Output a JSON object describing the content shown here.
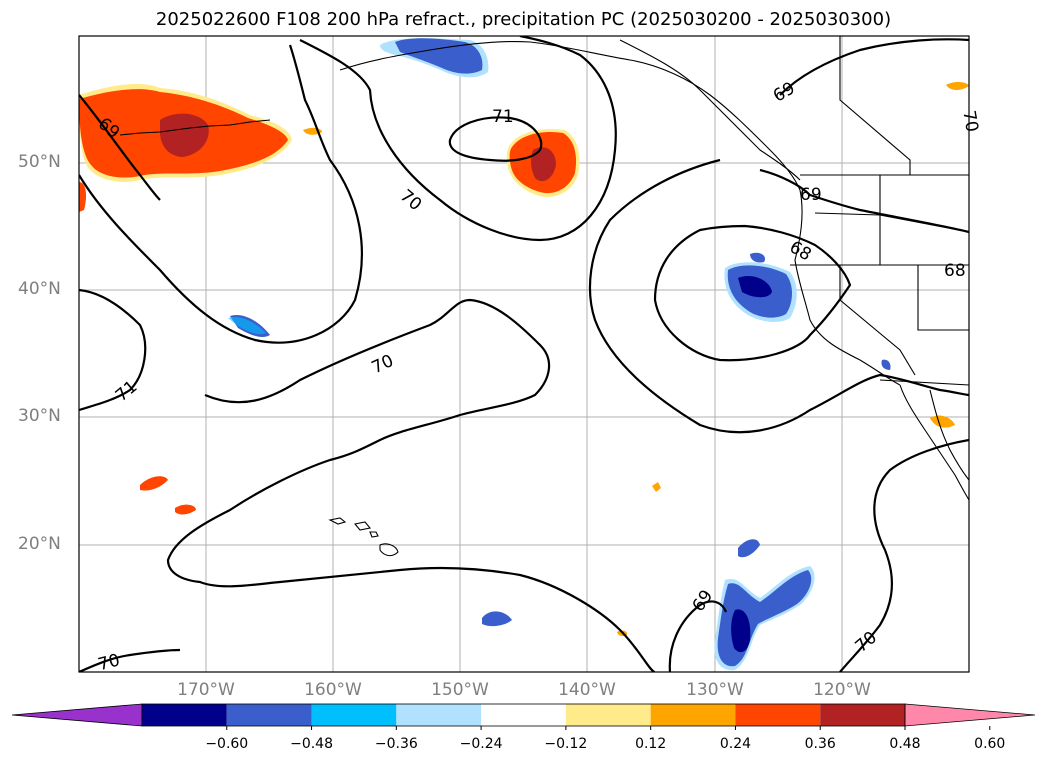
{
  "title": "2025022600 F108 200 hPa refract., precipitation PC (2025030200 - 2025030300)",
  "latitude_labels": [
    "50°N",
    "40°N",
    "30°N",
    "20°N"
  ],
  "longitude_labels": [
    "170°W",
    "160°W",
    "150°W",
    "140°W",
    "130°W",
    "120°W"
  ],
  "contour_labels": [
    "69",
    "71",
    "70",
    "70",
    "71",
    "70",
    "68",
    "69",
    "69",
    "68",
    "69",
    "70",
    "70"
  ],
  "colorbar": {
    "tick_labels": [
      "−0.60",
      "−0.48",
      "−0.36",
      "−0.24",
      "−0.12",
      "0.12",
      "0.24",
      "0.36",
      "0.48",
      "0.60"
    ],
    "colors": [
      "#9932cc",
      "#00008b",
      "#3a5fcd",
      "#00bfff",
      "#b0e2ff",
      "#ffffff",
      "#ffeb8a",
      "#ffa500",
      "#ff4500",
      "#b22222",
      "#ff88aa"
    ]
  },
  "colors": {
    "gridline": "#b0b0b0",
    "contour": "#000000",
    "coastline": "#000000"
  }
}
